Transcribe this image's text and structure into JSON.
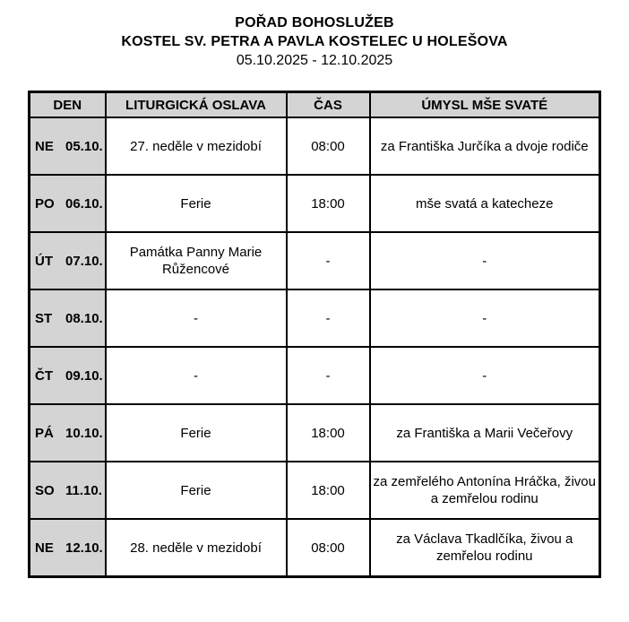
{
  "page": {
    "title": "POŘAD BOHOSLUŽEB",
    "subtitle": "KOSTEL SV. PETRA A PAVLA KOSTELEC U HOLEŠOVA",
    "date_range": "05.10.2025 - 12.10.2025"
  },
  "table": {
    "headers": {
      "den": "DEN",
      "oslava": "LITURGICKÁ OSLAVA",
      "cas": "ČAS",
      "umysl": "ÚMYSL MŠE SVATÉ"
    },
    "rows": [
      {
        "day": "NE",
        "date": "05.10.",
        "oslava": "27. neděle v mezidobí",
        "cas": "08:00",
        "umysl": "za Františka Jurčíka a dvoje rodiče"
      },
      {
        "day": "PO",
        "date": "06.10.",
        "oslava": "Ferie",
        "cas": "18:00",
        "umysl": "mše svatá a katecheze"
      },
      {
        "day": "ÚT",
        "date": "07.10.",
        "oslava": "Památka Panny Marie Růžencové",
        "cas": "-",
        "umysl": "-"
      },
      {
        "day": "ST",
        "date": "08.10.",
        "oslava": "-",
        "cas": "-",
        "umysl": "-"
      },
      {
        "day": "ČT",
        "date": "09.10.",
        "oslava": "-",
        "cas": "-",
        "umysl": "-"
      },
      {
        "day": "PÁ",
        "date": "10.10.",
        "oslava": "Ferie",
        "cas": "18:00",
        "umysl": "za Františka a Marii Večeřovy"
      },
      {
        "day": "SO",
        "date": "11.10.",
        "oslava": "Ferie",
        "cas": "18:00",
        "umysl": "za zemřelého Antonína Hráčka, živou a zemřelou rodinu"
      },
      {
        "day": "NE",
        "date": "12.10.",
        "oslava": "28. neděle v mezidobí",
        "cas": "08:00",
        "umysl": "za Václava Tkadlčíka, živou a zemřelou rodinu"
      }
    ]
  },
  "colors": {
    "header_row_bg": "#d4d4d4",
    "day_column_bg": "#d4d4d4",
    "border": "#000000",
    "text": "#000000",
    "background": "#ffffff"
  }
}
